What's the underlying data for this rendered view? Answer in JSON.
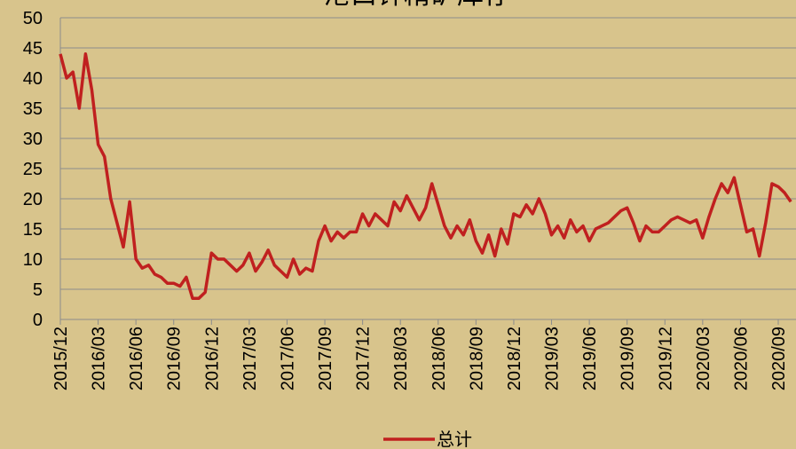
{
  "chart_data": {
    "type": "line",
    "title": "港口锌精矿库存",
    "categories": [
      "2015/12",
      null,
      null,
      null,
      null,
      null,
      "2016/03",
      null,
      null,
      null,
      null,
      null,
      "2016/06",
      null,
      null,
      null,
      null,
      null,
      "2016/09",
      null,
      null,
      null,
      null,
      null,
      "2016/12",
      null,
      null,
      null,
      null,
      null,
      "2017/03",
      null,
      null,
      null,
      null,
      null,
      "2017/06",
      null,
      null,
      null,
      null,
      null,
      "2017/09",
      null,
      null,
      null,
      null,
      null,
      "2017/12",
      null,
      null,
      null,
      null,
      null,
      "2018/03",
      null,
      null,
      null,
      null,
      null,
      "2018/06",
      null,
      null,
      null,
      null,
      null,
      "2018/09",
      null,
      null,
      null,
      null,
      null,
      "2018/12",
      null,
      null,
      null,
      null,
      null,
      "2019/03",
      null,
      null,
      null,
      null,
      null,
      "2019/06",
      null,
      null,
      null,
      null,
      null,
      "2019/09",
      null,
      null,
      null,
      null,
      null,
      "2019/12",
      null,
      null,
      null,
      null,
      null,
      "2020/03",
      null,
      null,
      null,
      null,
      null,
      "2020/06",
      null,
      null,
      null,
      null,
      null,
      "2020/09",
      null,
      null
    ],
    "series": [
      {
        "name": "总计",
        "color": "#c0201f",
        "values": [
          44,
          40,
          41,
          35,
          44,
          38,
          29,
          27,
          20,
          16,
          12,
          19.5,
          10,
          8.5,
          9,
          7.5,
          7,
          6,
          6,
          5.5,
          7,
          3.5,
          3.5,
          4.5,
          11,
          10,
          10,
          9,
          8,
          9,
          11,
          8,
          9.5,
          11.5,
          9,
          8,
          7,
          10,
          7.5,
          8.5,
          8,
          13,
          15.5,
          13,
          14.5,
          13.5,
          14.5,
          14.5,
          17.5,
          15.5,
          17.5,
          16.5,
          15.5,
          19.5,
          18,
          20.5,
          18.5,
          16.5,
          18.5,
          22.5,
          19,
          15.5,
          13.5,
          15.5,
          14,
          16.5,
          13,
          11,
          14,
          10.5,
          15,
          12.5,
          17.5,
          17,
          19,
          17.5,
          20,
          17.5,
          14,
          15.5,
          13.5,
          16.5,
          14.5,
          15.5,
          13,
          15,
          15.5,
          16,
          17,
          18,
          18.5,
          16,
          13,
          15.5,
          14.5,
          14.5,
          15.5,
          16.5,
          17,
          16.5,
          16,
          16.5,
          13.5,
          17,
          20,
          22.5,
          21,
          23.5,
          19,
          14.5,
          15,
          10.5,
          16,
          22.5,
          22,
          21,
          19.5
        ]
      }
    ],
    "ylim": [
      0,
      50
    ],
    "yticks": [
      0,
      5,
      10,
      15,
      20,
      25,
      30,
      35,
      40,
      45,
      50
    ],
    "grid": true
  }
}
